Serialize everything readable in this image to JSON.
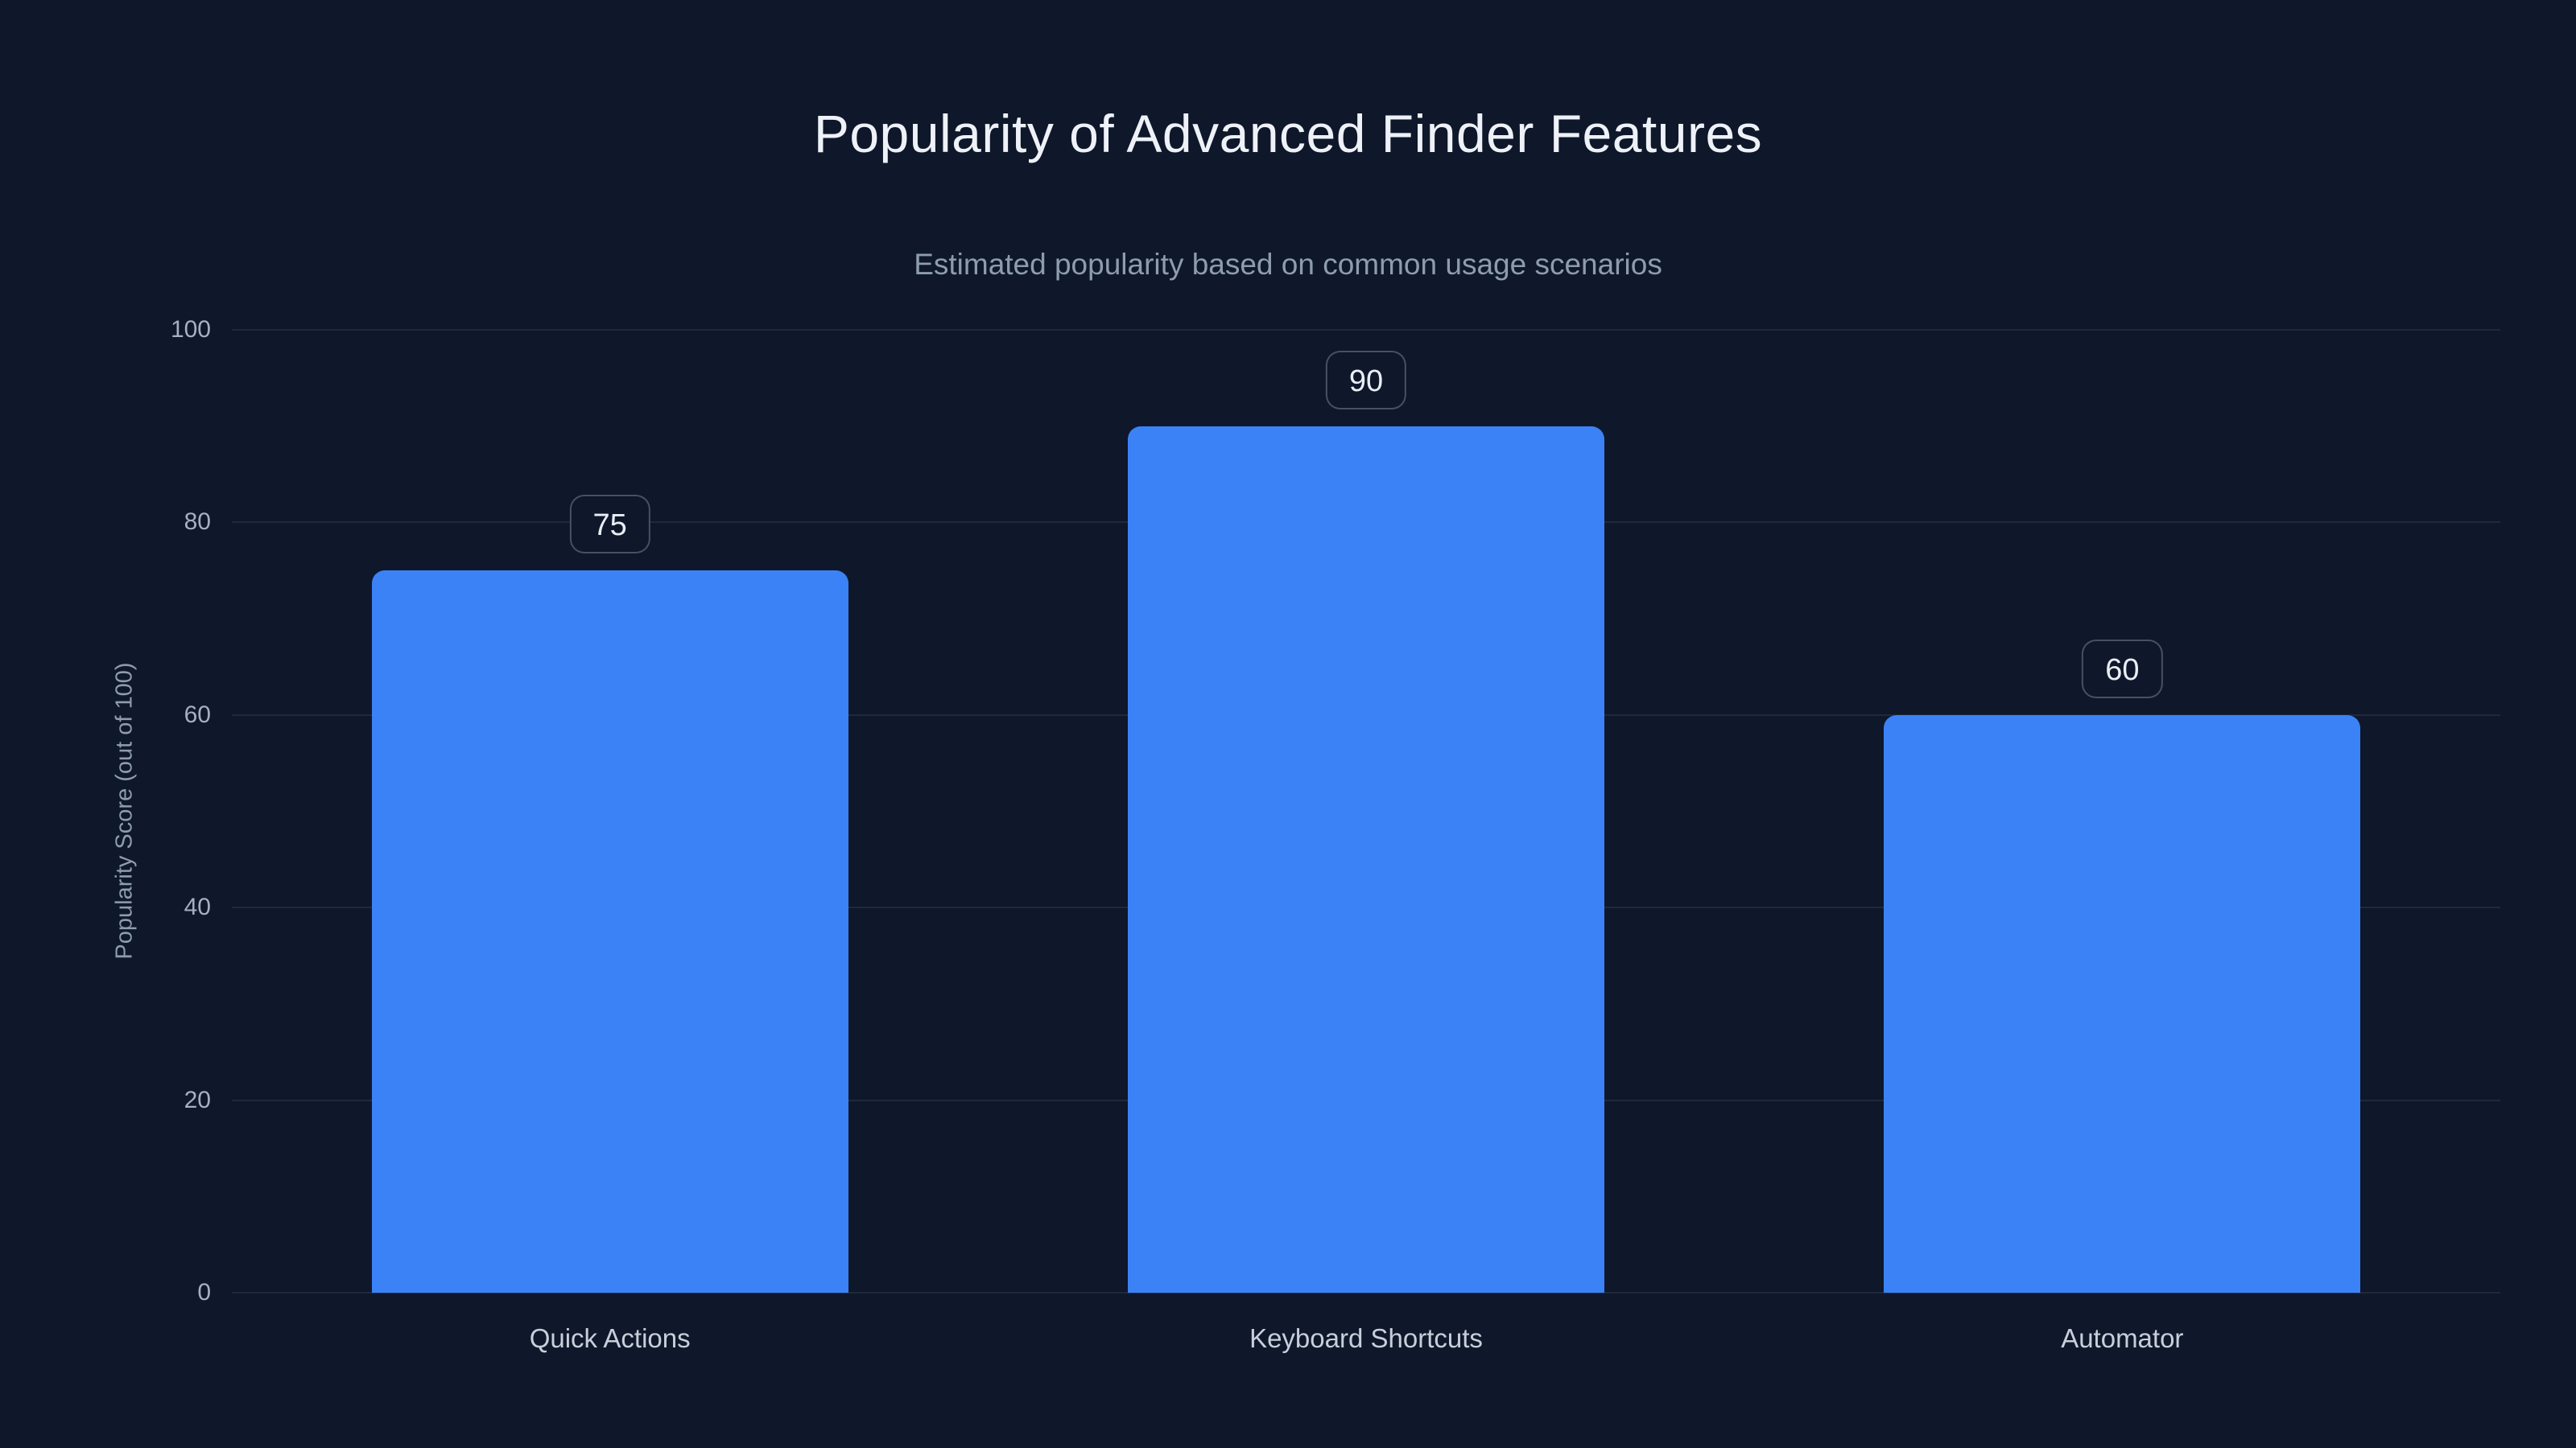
{
  "page": {
    "background_color": "#0f172a"
  },
  "chart_data": {
    "type": "bar",
    "title": "Popularity of Advanced Finder Features",
    "subtitle": "Estimated popularity based on common usage scenarios",
    "xlabel": "",
    "ylabel": "Popularity Score (out of 100)",
    "categories": [
      "Quick Actions",
      "Keyboard Shortcuts",
      "Automator"
    ],
    "values": [
      75,
      90,
      60
    ],
    "value_labels": [
      "75",
      "90",
      "60"
    ],
    "ylim": [
      0,
      100
    ],
    "yticks": [
      0,
      20,
      40,
      60,
      80,
      100
    ],
    "grid": true,
    "legend": false,
    "bar_color": "#3b82f6",
    "value_label_style": "rounded-outline-badge"
  }
}
